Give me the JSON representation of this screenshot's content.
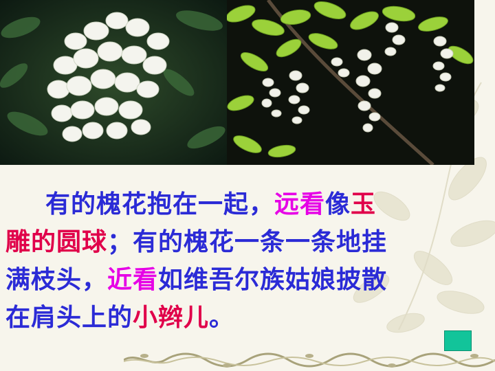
{
  "slide": {
    "line1": {
      "a": "有的槐花抱在一起，",
      "b": "远看",
      "c": "像",
      "d": "玉"
    },
    "line2": {
      "a": "雕的圆球",
      "b": "；有的槐花一条一条地挂"
    },
    "line3": {
      "a": "满枝头，",
      "b": "近看",
      "c": "如维吾尔族姑娘披散"
    },
    "line4": {
      "a": "在肩头上的",
      "b": "小辫儿",
      "c": "。"
    }
  },
  "colors": {
    "text_main": "#2b2bd6",
    "highlight_magenta": "#e600e6",
    "highlight_red": "#e0004a",
    "nav_button": "#12c49a"
  },
  "icons": {
    "nav_button": "next-slide-button"
  }
}
